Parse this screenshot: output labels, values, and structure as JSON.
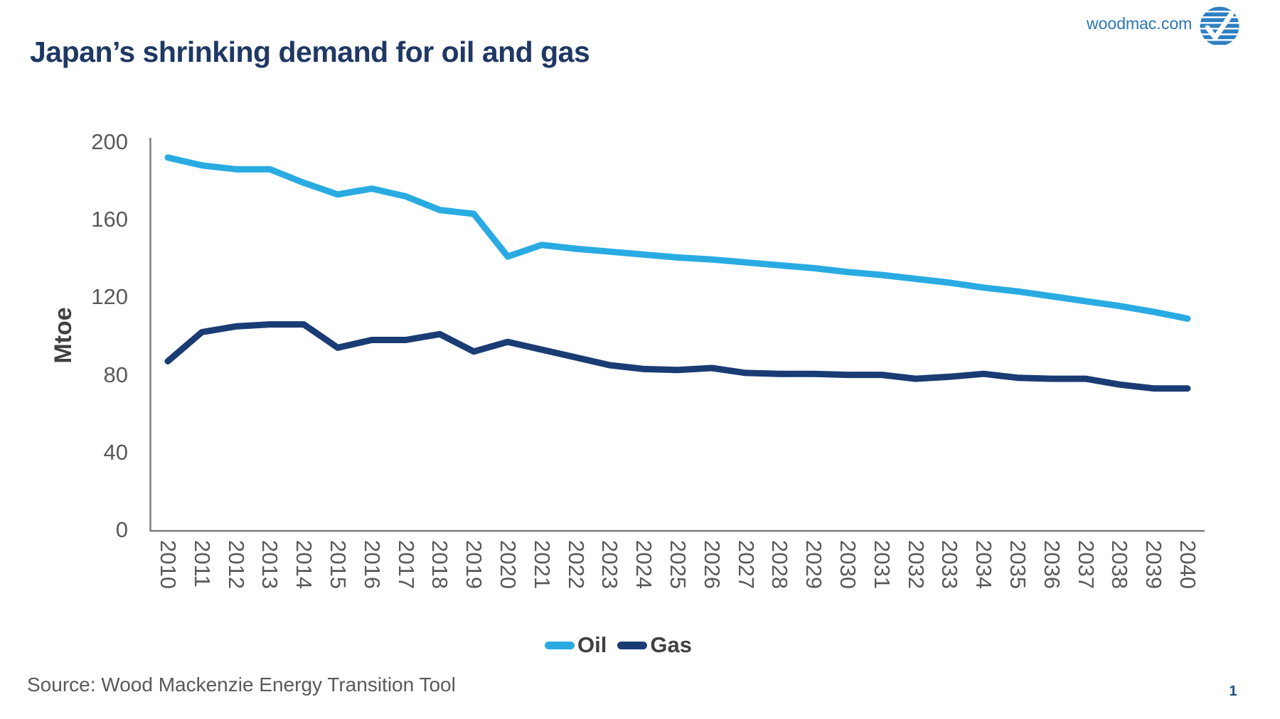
{
  "header": {
    "title": "Japan’s shrinking demand for oil and gas",
    "website": "woodmac.com",
    "logo_icon": "woodmac-globe-logo"
  },
  "footer": {
    "source": "Source: Wood Mackenzie Energy Transition Tool",
    "page_number": "1"
  },
  "colors": {
    "title": "#1F3864",
    "website_link": "#2E74B5",
    "axis": "#7F7F7F",
    "tick_text": "#595959",
    "legend_text": "#404040",
    "oil": "#29ABE2",
    "gas": "#1A3C74",
    "page_number": "#1F4E79"
  },
  "chart_data": {
    "type": "line",
    "title": "Japan’s shrinking demand for oil and gas",
    "xlabel": "",
    "ylabel": "Mtoe",
    "ylim": [
      0,
      200
    ],
    "yticks": [
      0,
      40,
      80,
      120,
      160,
      200
    ],
    "grid": false,
    "legend_position": "bottom-center",
    "x": [
      2010,
      2011,
      2012,
      2013,
      2014,
      2015,
      2016,
      2017,
      2018,
      2019,
      2020,
      2021,
      2022,
      2023,
      2024,
      2025,
      2026,
      2027,
      2028,
      2029,
      2030,
      2031,
      2032,
      2033,
      2034,
      2035,
      2036,
      2037,
      2038,
      2039,
      2040
    ],
    "series": [
      {
        "name": "Oil",
        "color": "#29ABE2",
        "values": [
          192,
          188,
          186,
          186,
          179,
          173,
          176,
          172,
          165,
          163,
          141,
          147,
          145,
          143.5,
          142,
          140.5,
          139.5,
          138,
          136.5,
          135,
          133,
          131.5,
          129.5,
          127.5,
          125,
          123,
          120.5,
          118,
          115.5,
          112.5,
          109
        ]
      },
      {
        "name": "Gas",
        "color": "#1A3C74",
        "values": [
          87,
          102,
          105,
          106,
          106,
          94,
          98,
          98,
          101,
          92,
          97,
          93,
          89,
          85,
          83,
          82.5,
          83.5,
          81,
          80.5,
          80.5,
          80,
          80,
          78,
          79,
          80.5,
          78.5,
          78,
          78,
          75,
          73,
          73
        ]
      }
    ]
  }
}
